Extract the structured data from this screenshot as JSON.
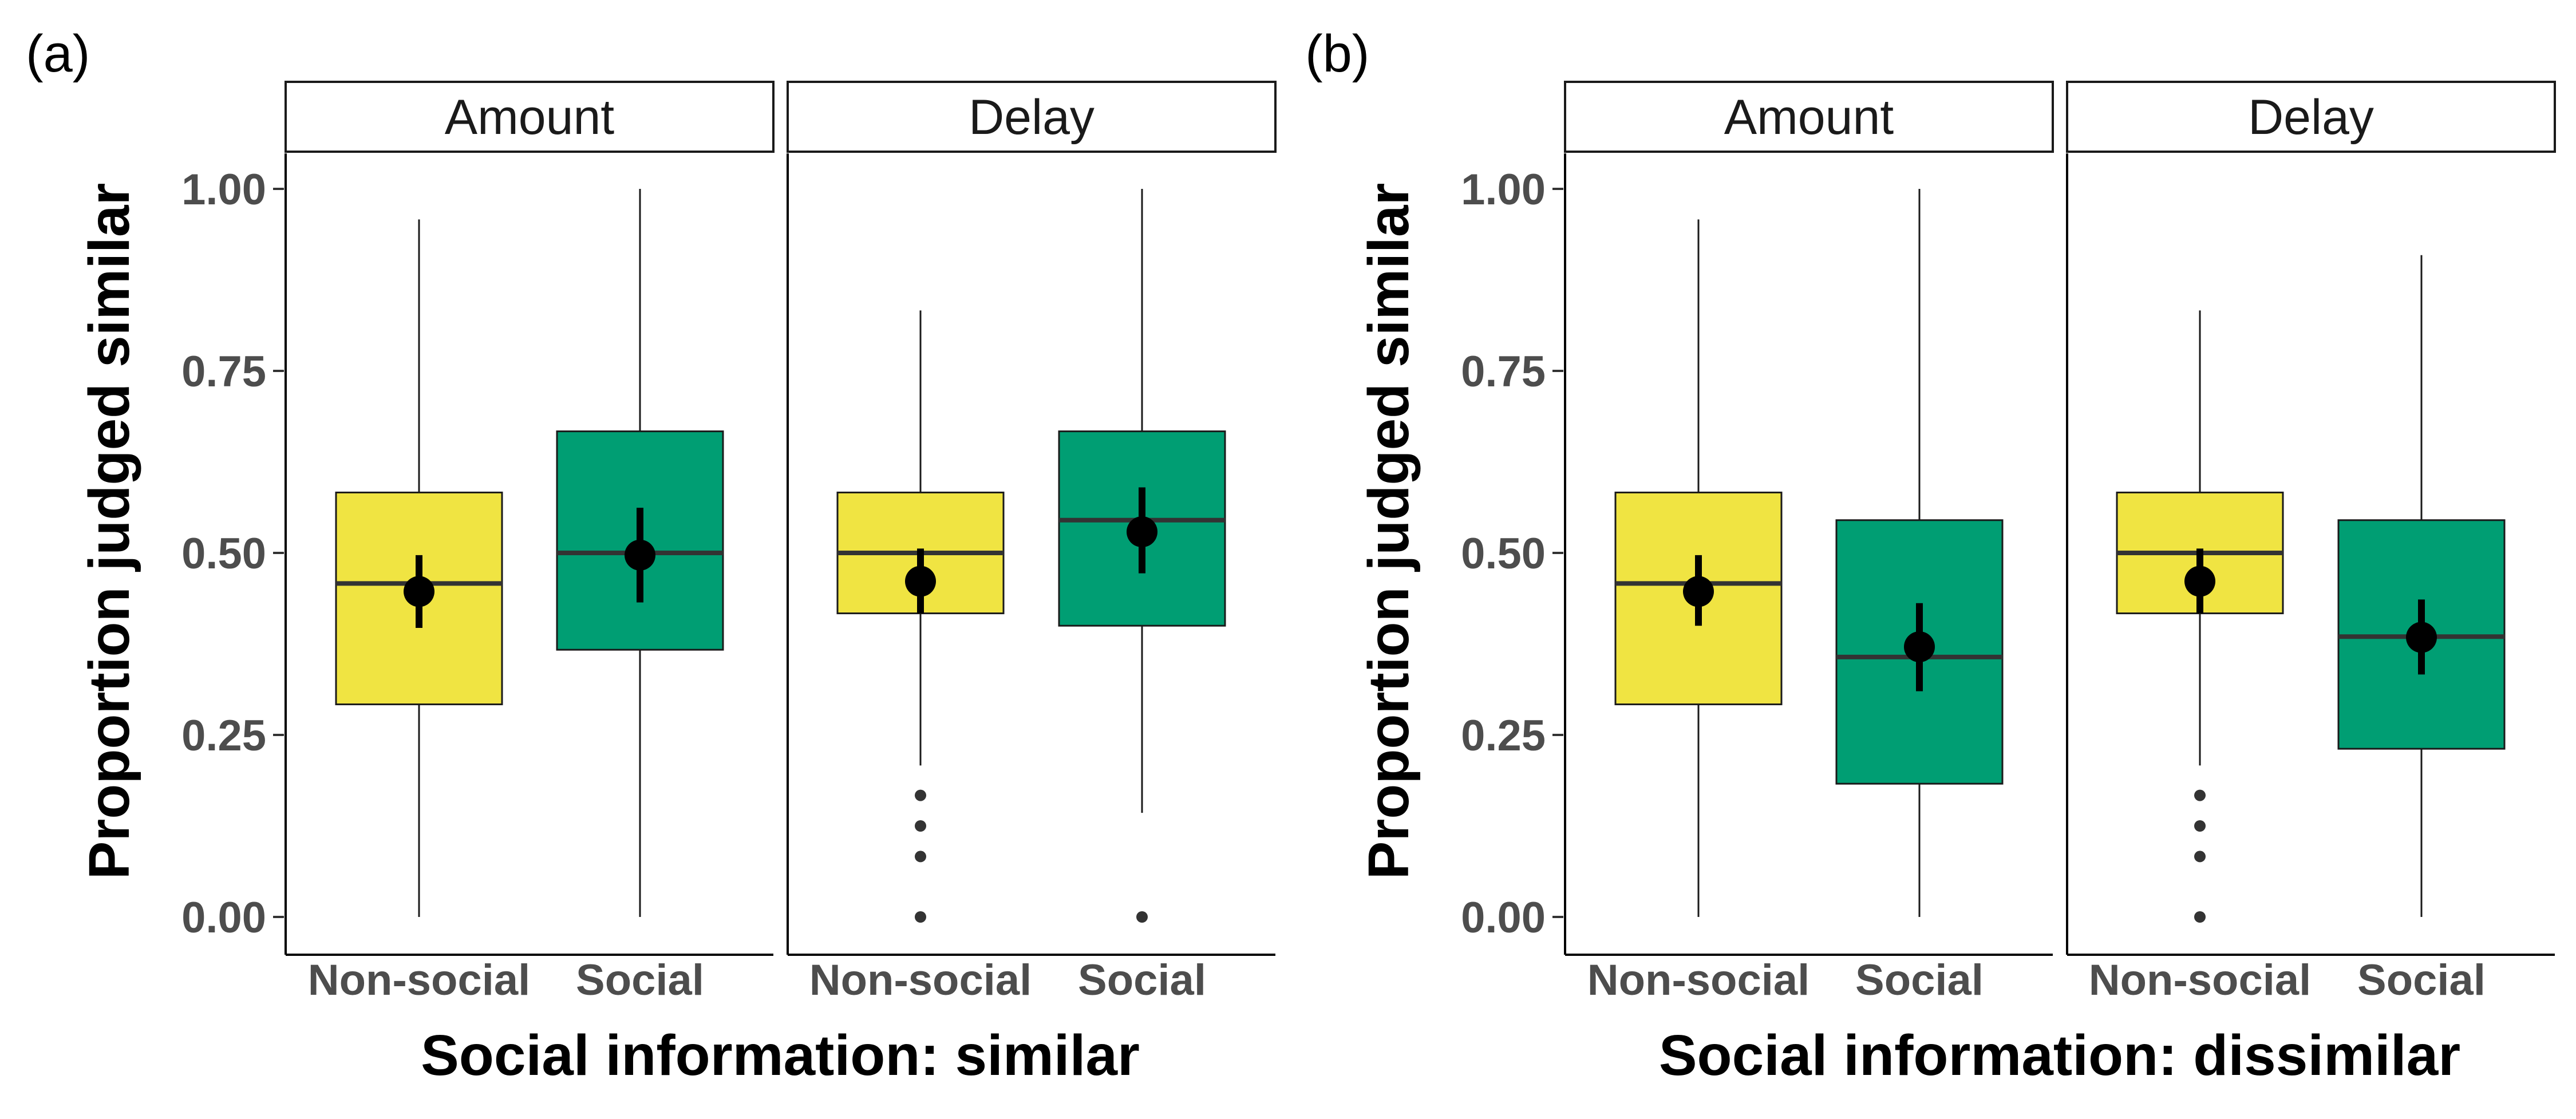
{
  "chart_data": [
    {
      "type": "box",
      "panel_label": "(a)",
      "xlabel": "Social information: similar",
      "ylabel": "Proportion judged similar",
      "ylim": [
        0,
        1
      ],
      "yticks": [
        0.0,
        0.25,
        0.5,
        0.75,
        1.0
      ],
      "ytick_labels": [
        "0.00",
        "0.25",
        "0.50",
        "0.75",
        "1.00"
      ],
      "facets": [
        {
          "title": "Amount",
          "groups": [
            {
              "category": "Non-social",
              "color": "#f0e442",
              "q1": 0.292,
              "median": 0.458,
              "q3": 0.583,
              "whisker_low": 0.0,
              "whisker_high": 0.958,
              "outliers": [],
              "mean": 0.447,
              "ci": [
                0.397,
                0.497
              ]
            },
            {
              "category": "Social",
              "color": "#009e73",
              "q1": 0.367,
              "median": 0.5,
              "q3": 0.667,
              "whisker_low": 0.0,
              "whisker_high": 1.0,
              "outliers": [],
              "mean": 0.497,
              "ci": [
                0.432,
                0.562
              ]
            }
          ]
        },
        {
          "title": "Delay",
          "groups": [
            {
              "category": "Non-social",
              "color": "#f0e442",
              "q1": 0.417,
              "median": 0.5,
              "q3": 0.583,
              "whisker_low": 0.208,
              "whisker_high": 0.833,
              "outliers": [
                0.167,
                0.125,
                0.083,
                0.0
              ],
              "mean": 0.461,
              "ci": [
                0.417,
                0.506
              ]
            },
            {
              "category": "Social",
              "color": "#009e73",
              "q1": 0.4,
              "median": 0.545,
              "q3": 0.667,
              "whisker_low": 0.143,
              "whisker_high": 1.0,
              "outliers": [
                0.0
              ],
              "mean": 0.529,
              "ci": [
                0.472,
                0.59
              ]
            }
          ]
        }
      ]
    },
    {
      "type": "box",
      "panel_label": "(b)",
      "xlabel": "Social information: dissimilar",
      "ylabel": "Proportion judged similar",
      "ylim": [
        0,
        1
      ],
      "yticks": [
        0.0,
        0.25,
        0.5,
        0.75,
        1.0
      ],
      "ytick_labels": [
        "0.00",
        "0.25",
        "0.50",
        "0.75",
        "1.00"
      ],
      "facets": [
        {
          "title": "Amount",
          "groups": [
            {
              "category": "Non-social",
              "color": "#f0e442",
              "q1": 0.292,
              "median": 0.458,
              "q3": 0.583,
              "whisker_low": 0.0,
              "whisker_high": 0.958,
              "outliers": [],
              "mean": 0.447,
              "ci": [
                0.4,
                0.497
              ]
            },
            {
              "category": "Social",
              "color": "#009e73",
              "q1": 0.183,
              "median": 0.357,
              "q3": 0.545,
              "whisker_low": 0.0,
              "whisker_high": 1.0,
              "outliers": [],
              "mean": 0.371,
              "ci": [
                0.31,
                0.431
              ]
            }
          ]
        },
        {
          "title": "Delay",
          "groups": [
            {
              "category": "Non-social",
              "color": "#f0e442",
              "q1": 0.417,
              "median": 0.5,
              "q3": 0.583,
              "whisker_low": 0.208,
              "whisker_high": 0.833,
              "outliers": [
                0.167,
                0.125,
                0.083,
                0.0
              ],
              "mean": 0.461,
              "ci": [
                0.417,
                0.506
              ]
            },
            {
              "category": "Social",
              "color": "#009e73",
              "q1": 0.231,
              "median": 0.385,
              "q3": 0.545,
              "whisker_low": 0.0,
              "whisker_high": 0.909,
              "outliers": [],
              "mean": 0.384,
              "ci": [
                0.333,
                0.436
              ]
            }
          ]
        }
      ]
    }
  ]
}
